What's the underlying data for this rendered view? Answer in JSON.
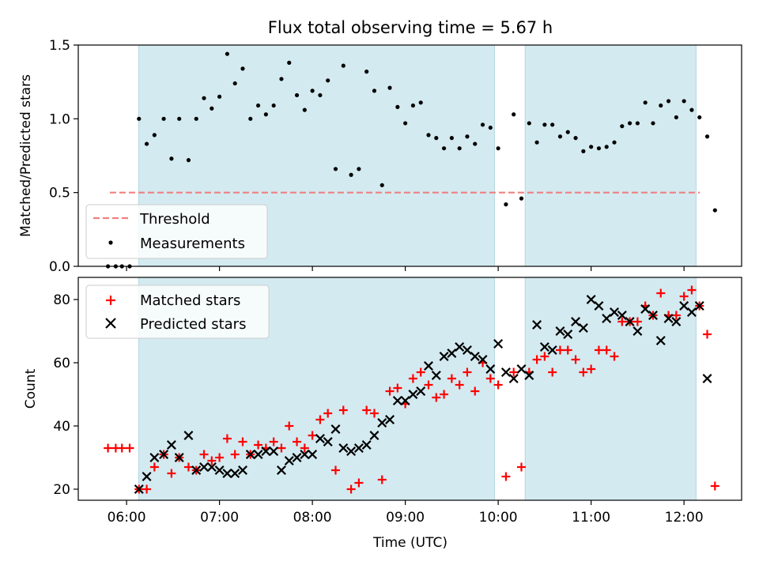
{
  "chart_data": {
    "type": "scatter",
    "title": "Flux total observing time = 5.67 h",
    "xlabel": "Time (UTC)",
    "x_ticks": [
      "06:00",
      "07:00",
      "08:00",
      "09:00",
      "10:00",
      "11:00",
      "12:00"
    ],
    "x_range_hours": [
      5.48,
      12.62
    ],
    "shaded_intervals": [
      [
        6.13,
        9.96
      ],
      [
        10.29,
        12.13
      ]
    ],
    "panels": [
      {
        "ylabel": "Matched/Predicted stars",
        "ylim": [
          0,
          1.5
        ],
        "yticks": [
          0.0,
          0.5,
          1.0,
          1.5
        ],
        "legend": {
          "position": "lower-left",
          "entries": [
            {
              "label": "Threshold",
              "marker": "dashed-line",
              "color": "#f08080"
            },
            {
              "label": "Measurements",
              "marker": "dot",
              "color": "#000000"
            }
          ]
        },
        "threshold": {
          "name": "Threshold",
          "value": 0.5,
          "x_from": 5.82,
          "x_to": 12.17,
          "color": "#f08080"
        },
        "measurements": {
          "name": "Measurements",
          "color": "#000000",
          "points": [
            [
              "05:48",
              0
            ],
            [
              "05:53",
              0
            ],
            [
              "05:57",
              0
            ],
            [
              "06:02",
              0
            ],
            [
              "06:08",
              1.0
            ],
            [
              "06:13",
              0.83
            ],
            [
              "06:18",
              0.89
            ],
            [
              "06:24",
              1.0
            ],
            [
              "06:29",
              0.73
            ],
            [
              "06:34",
              1.0
            ],
            [
              "06:40",
              0.72
            ],
            [
              "06:45",
              1.0
            ],
            [
              "06:50",
              1.14
            ],
            [
              "06:55",
              1.07
            ],
            [
              "07:00",
              1.15
            ],
            [
              "07:05",
              1.44
            ],
            [
              "07:10",
              1.24
            ],
            [
              "07:15",
              1.34
            ],
            [
              "07:20",
              1.0
            ],
            [
              "07:25",
              1.09
            ],
            [
              "07:30",
              1.03
            ],
            [
              "07:35",
              1.09
            ],
            [
              "07:40",
              1.27
            ],
            [
              "07:45",
              1.38
            ],
            [
              "07:50",
              1.16
            ],
            [
              "07:55",
              1.06
            ],
            [
              "08:00",
              1.19
            ],
            [
              "08:05",
              1.16
            ],
            [
              "08:10",
              1.26
            ],
            [
              "08:15",
              0.66
            ],
            [
              "08:20",
              1.36
            ],
            [
              "08:25",
              0.62
            ],
            [
              "08:30",
              0.66
            ],
            [
              "08:35",
              1.32
            ],
            [
              "08:40",
              1.19
            ],
            [
              "08:45",
              0.55
            ],
            [
              "08:50",
              1.21
            ],
            [
              "08:55",
              1.08
            ],
            [
              "09:00",
              0.97
            ],
            [
              "09:05",
              1.09
            ],
            [
              "09:10",
              1.11
            ],
            [
              "09:15",
              0.89
            ],
            [
              "09:20",
              0.87
            ],
            [
              "09:25",
              0.8
            ],
            [
              "09:30",
              0.87
            ],
            [
              "09:35",
              0.8
            ],
            [
              "09:40",
              0.88
            ],
            [
              "09:45",
              0.83
            ],
            [
              "09:50",
              0.96
            ],
            [
              "09:55",
              0.94
            ],
            [
              "10:00",
              0.8
            ],
            [
              "10:05",
              0.42
            ],
            [
              "10:10",
              1.03
            ],
            [
              "10:15",
              0.46
            ],
            [
              "10:20",
              0.97
            ],
            [
              "10:25",
              0.84
            ],
            [
              "10:30",
              0.96
            ],
            [
              "10:35",
              0.96
            ],
            [
              "10:40",
              0.88
            ],
            [
              "10:45",
              0.91
            ],
            [
              "10:50",
              0.87
            ],
            [
              "10:55",
              0.78
            ],
            [
              "11:00",
              0.81
            ],
            [
              "11:05",
              0.8
            ],
            [
              "11:10",
              0.81
            ],
            [
              "11:15",
              0.84
            ],
            [
              "11:20",
              0.95
            ],
            [
              "11:25",
              0.97
            ],
            [
              "11:30",
              0.97
            ],
            [
              "11:35",
              1.11
            ],
            [
              "11:40",
              0.97
            ],
            [
              "11:45",
              1.09
            ],
            [
              "11:50",
              1.12
            ],
            [
              "11:55",
              1.01
            ],
            [
              "12:00",
              1.12
            ],
            [
              "12:05",
              1.06
            ],
            [
              "12:10",
              1.01
            ],
            [
              "12:15",
              0.88
            ],
            [
              "12:20",
              0.38
            ]
          ]
        }
      },
      {
        "ylabel": "Count",
        "ylim": [
          16.5,
          87
        ],
        "yticks": [
          20,
          40,
          60,
          80
        ],
        "legend": {
          "position": "top-left",
          "entries": [
            {
              "label": "Matched stars",
              "marker": "plus",
              "color": "#ff0000"
            },
            {
              "label": "Predicted stars",
              "marker": "x",
              "color": "#000000"
            }
          ]
        },
        "series": [
          {
            "name": "Matched stars",
            "marker": "plus",
            "color": "#ff0000",
            "points": [
              [
                "05:48",
                33
              ],
              [
                "05:53",
                33
              ],
              [
                "05:57",
                33
              ],
              [
                "06:02",
                33
              ],
              [
                "06:08",
                20
              ],
              [
                "06:13",
                20
              ],
              [
                "06:18",
                27
              ],
              [
                "06:24",
                31
              ],
              [
                "06:29",
                25
              ],
              [
                "06:34",
                30
              ],
              [
                "06:40",
                27
              ],
              [
                "06:45",
                26
              ],
              [
                "06:50",
                31
              ],
              [
                "06:55",
                29
              ],
              [
                "07:00",
                30
              ],
              [
                "07:05",
                36
              ],
              [
                "07:10",
                31
              ],
              [
                "07:15",
                35
              ],
              [
                "07:20",
                31
              ],
              [
                "07:25",
                34
              ],
              [
                "07:30",
                33
              ],
              [
                "07:35",
                35
              ],
              [
                "07:40",
                33
              ],
              [
                "07:45",
                40
              ],
              [
                "07:50",
                35
              ],
              [
                "07:55",
                33
              ],
              [
                "08:00",
                37
              ],
              [
                "08:05",
                42
              ],
              [
                "08:10",
                44
              ],
              [
                "08:15",
                26
              ],
              [
                "08:20",
                45
              ],
              [
                "08:25",
                20
              ],
              [
                "08:30",
                22
              ],
              [
                "08:35",
                45
              ],
              [
                "08:40",
                44
              ],
              [
                "08:45",
                23
              ],
              [
                "08:50",
                51
              ],
              [
                "08:55",
                52
              ],
              [
                "09:00",
                47
              ],
              [
                "09:05",
                55
              ],
              [
                "09:10",
                57
              ],
              [
                "09:15",
                53
              ],
              [
                "09:20",
                49
              ],
              [
                "09:25",
                50
              ],
              [
                "09:30",
                55
              ],
              [
                "09:35",
                53
              ],
              [
                "09:40",
                57
              ],
              [
                "09:45",
                51
              ],
              [
                "09:50",
                60
              ],
              [
                "09:55",
                55
              ],
              [
                "10:00",
                53
              ],
              [
                "10:05",
                24
              ],
              [
                "10:10",
                57
              ],
              [
                "10:15",
                27
              ],
              [
                "10:20",
                57
              ],
              [
                "10:25",
                61
              ],
              [
                "10:30",
                62
              ],
              [
                "10:35",
                57
              ],
              [
                "10:40",
                64
              ],
              [
                "10:45",
                64
              ],
              [
                "10:50",
                61
              ],
              [
                "10:55",
                57
              ],
              [
                "11:00",
                58
              ],
              [
                "11:05",
                64
              ],
              [
                "11:10",
                64
              ],
              [
                "11:15",
                62
              ],
              [
                "11:20",
                73
              ],
              [
                "11:25",
                73
              ],
              [
                "11:30",
                73
              ],
              [
                "11:35",
                78
              ],
              [
                "11:40",
                75
              ],
              [
                "11:45",
                82
              ],
              [
                "11:50",
                75
              ],
              [
                "11:55",
                75
              ],
              [
                "12:00",
                81
              ],
              [
                "12:05",
                83
              ],
              [
                "12:10",
                78
              ],
              [
                "12:15",
                69
              ],
              [
                "12:20",
                21
              ]
            ]
          },
          {
            "name": "Predicted stars",
            "marker": "x",
            "color": "#000000",
            "points": [
              [
                "06:08",
                20
              ],
              [
                "06:13",
                24
              ],
              [
                "06:18",
                30
              ],
              [
                "06:24",
                31
              ],
              [
                "06:29",
                34
              ],
              [
                "06:34",
                30
              ],
              [
                "06:40",
                37
              ],
              [
                "06:45",
                26
              ],
              [
                "06:50",
                27
              ],
              [
                "06:55",
                27
              ],
              [
                "07:00",
                26
              ],
              [
                "07:05",
                25
              ],
              [
                "07:10",
                25
              ],
              [
                "07:15",
                26
              ],
              [
                "07:20",
                31
              ],
              [
                "07:25",
                31
              ],
              [
                "07:30",
                32
              ],
              [
                "07:35",
                32
              ],
              [
                "07:40",
                26
              ],
              [
                "07:45",
                29
              ],
              [
                "07:50",
                30
              ],
              [
                "07:55",
                31
              ],
              [
                "08:00",
                31
              ],
              [
                "08:05",
                36
              ],
              [
                "08:10",
                35
              ],
              [
                "08:15",
                39
              ],
              [
                "08:20",
                33
              ],
              [
                "08:25",
                32
              ],
              [
                "08:30",
                33
              ],
              [
                "08:35",
                34
              ],
              [
                "08:40",
                37
              ],
              [
                "08:45",
                41
              ],
              [
                "08:50",
                42
              ],
              [
                "08:55",
                48
              ],
              [
                "09:00",
                48
              ],
              [
                "09:05",
                50
              ],
              [
                "09:10",
                51
              ],
              [
                "09:15",
                59
              ],
              [
                "09:20",
                56
              ],
              [
                "09:25",
                62
              ],
              [
                "09:30",
                63
              ],
              [
                "09:35",
                65
              ],
              [
                "09:40",
                64
              ],
              [
                "09:45",
                62
              ],
              [
                "09:50",
                61
              ],
              [
                "09:55",
                58
              ],
              [
                "10:00",
                66
              ],
              [
                "10:05",
                57
              ],
              [
                "10:10",
                55
              ],
              [
                "10:15",
                58
              ],
              [
                "10:20",
                56
              ],
              [
                "10:25",
                72
              ],
              [
                "10:30",
                65
              ],
              [
                "10:35",
                64
              ],
              [
                "10:40",
                70
              ],
              [
                "10:45",
                69
              ],
              [
                "10:50",
                73
              ],
              [
                "10:55",
                71
              ],
              [
                "11:00",
                80
              ],
              [
                "11:05",
                78
              ],
              [
                "11:10",
                74
              ],
              [
                "11:15",
                76
              ],
              [
                "11:20",
                75
              ],
              [
                "11:25",
                73
              ],
              [
                "11:30",
                70
              ],
              [
                "11:35",
                77
              ],
              [
                "11:40",
                75
              ],
              [
                "11:45",
                67
              ],
              [
                "11:50",
                74
              ],
              [
                "11:55",
                73
              ],
              [
                "12:00",
                78
              ],
              [
                "12:05",
                76
              ],
              [
                "12:10",
                78
              ],
              [
                "12:15",
                55
              ]
            ]
          }
        ]
      }
    ],
    "colors": {
      "shade": "#d3eaf0",
      "shade_edge": "#b3d7e3"
    }
  }
}
